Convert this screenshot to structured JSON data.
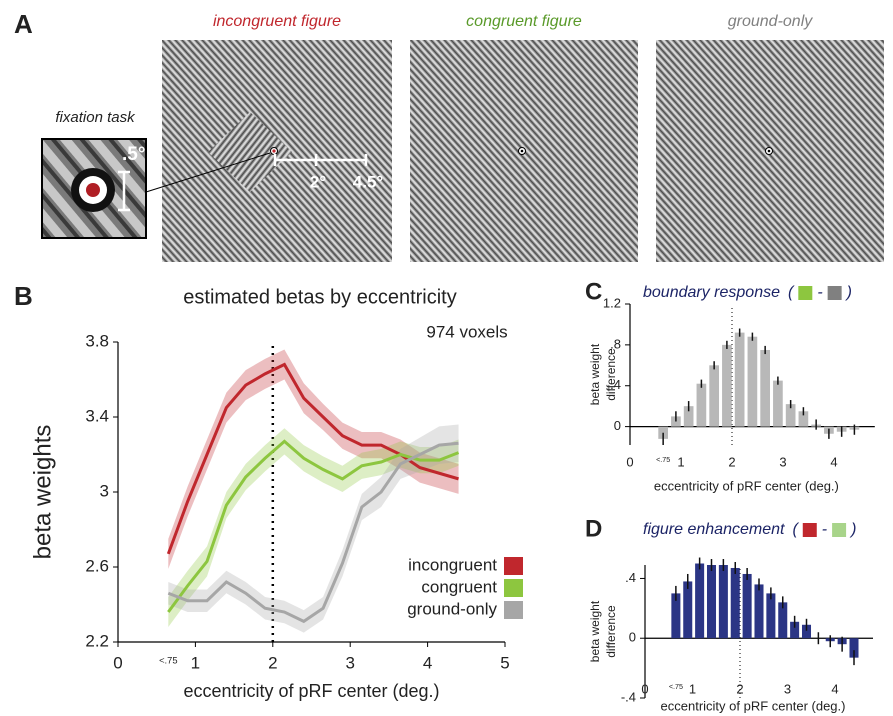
{
  "panel_a": {
    "label": "A",
    "inset_title": "fixation task",
    "inset_scale": ".5°",
    "scale_labels": [
      "2°",
      "4.5°"
    ],
    "images": [
      {
        "title": "incongruent figure",
        "color": "#c0272d"
      },
      {
        "title": "congruent figure",
        "color": "#5a9a2a"
      },
      {
        "title": "ground-only",
        "color": "#808080"
      }
    ]
  },
  "chart_data": [
    {
      "type": "line",
      "label": "B",
      "title": "estimated betas by eccentricity",
      "annotation": "974 voxels",
      "xlabel": "eccentricity of pRF center (deg.)",
      "ylabel": "beta weights",
      "x": [
        0.65,
        0.9,
        1.15,
        1.4,
        1.65,
        1.9,
        2.15,
        2.4,
        2.65,
        2.9,
        3.15,
        3.4,
        3.65,
        3.9,
        4.15,
        4.4
      ],
      "series": [
        {
          "name": "incongruent",
          "color": "#c0272d",
          "values": [
            2.67,
            2.95,
            3.2,
            3.45,
            3.57,
            3.63,
            3.68,
            3.5,
            3.4,
            3.3,
            3.25,
            3.25,
            3.2,
            3.13,
            3.1,
            3.07
          ],
          "errors": [
            0.08,
            0.08,
            0.08,
            0.08,
            0.08,
            0.08,
            0.08,
            0.08,
            0.07,
            0.07,
            0.07,
            0.07,
            0.08,
            0.08,
            0.08,
            0.08
          ]
        },
        {
          "name": "congruent",
          "color": "#8dc63f",
          "values": [
            2.36,
            2.5,
            2.63,
            2.93,
            3.08,
            3.18,
            3.27,
            3.18,
            3.12,
            3.07,
            3.14,
            3.16,
            3.2,
            3.17,
            3.17,
            3.21
          ],
          "errors": [
            0.08,
            0.08,
            0.08,
            0.07,
            0.07,
            0.07,
            0.07,
            0.07,
            0.07,
            0.07,
            0.07,
            0.07,
            0.07,
            0.07,
            0.07,
            0.07
          ]
        },
        {
          "name": "ground-only",
          "color": "#a6a6a6",
          "values": [
            2.46,
            2.42,
            2.42,
            2.52,
            2.46,
            2.38,
            2.36,
            2.31,
            2.38,
            2.62,
            2.92,
            3.0,
            3.15,
            3.2,
            3.25,
            3.26
          ],
          "errors": [
            0.06,
            0.06,
            0.06,
            0.06,
            0.06,
            0.06,
            0.06,
            0.06,
            0.06,
            0.07,
            0.07,
            0.08,
            0.08,
            0.09,
            0.1,
            0.1
          ]
        }
      ],
      "xlim": [
        0,
        5
      ],
      "ylim": [
        2.2,
        3.8
      ],
      "xticks": [
        0,
        {
          "value": 0.65,
          "label": "<.75"
        },
        1,
        2,
        3,
        4,
        5
      ],
      "yticks": [
        2.2,
        2.6,
        3,
        3.4,
        3.8
      ],
      "reference_x": 2,
      "legend": "lower right"
    },
    {
      "type": "bar",
      "label": "C",
      "title": "boundary response",
      "formula": {
        "open": "(",
        "operator": "-",
        "close": ")",
        "colors": [
          "#8dc63f",
          "#808080"
        ]
      },
      "xlabel": "eccentricity of pRF center (deg.)",
      "ylabel": [
        "beta weight",
        "difference"
      ],
      "color": "#b8b8b8",
      "x": [
        0.65,
        0.9,
        1.15,
        1.4,
        1.65,
        1.9,
        2.15,
        2.4,
        2.65,
        2.9,
        3.15,
        3.4,
        3.65,
        3.9,
        4.15,
        4.4
      ],
      "values": [
        -0.12,
        0.1,
        0.2,
        0.42,
        0.6,
        0.8,
        0.92,
        0.88,
        0.75,
        0.45,
        0.22,
        0.15,
        0.02,
        -0.07,
        -0.05,
        -0.03
      ],
      "errors": [
        0.06,
        0.05,
        0.05,
        0.04,
        0.04,
        0.04,
        0.04,
        0.04,
        0.04,
        0.04,
        0.04,
        0.04,
        0.05,
        0.05,
        0.05,
        0.05
      ],
      "xlim": [
        0,
        4.8
      ],
      "ylim": [
        -0.18,
        1.2
      ],
      "xticks": [
        0,
        {
          "value": 0.65,
          "label": "<.75"
        },
        1,
        2,
        3,
        4
      ],
      "yticks": [
        0,
        {
          "value": 0.4,
          "label": ".4"
        },
        {
          "value": 0.8,
          "label": ".8"
        },
        1.2
      ],
      "reference_x": 2
    },
    {
      "type": "bar",
      "label": "D",
      "title": "figure enhancement",
      "formula": {
        "open": "(",
        "operator": "-",
        "close": ")",
        "colors": [
          "#c0272d",
          "#a8d48a"
        ]
      },
      "xlabel": "eccentricity of pRF center (deg.)",
      "ylabel": [
        "beta weight",
        "difference"
      ],
      "color": "#2b3585",
      "x": [
        0.65,
        0.9,
        1.15,
        1.4,
        1.65,
        1.9,
        2.15,
        2.4,
        2.65,
        2.9,
        3.15,
        3.4,
        3.65,
        3.9,
        4.15,
        4.4
      ],
      "values": [
        0.3,
        0.38,
        0.5,
        0.49,
        0.49,
        0.47,
        0.43,
        0.36,
        0.3,
        0.24,
        0.11,
        0.09,
        0.0,
        -0.02,
        -0.04,
        -0.13
      ],
      "errors": [
        0.05,
        0.05,
        0.04,
        0.04,
        0.04,
        0.04,
        0.04,
        0.04,
        0.04,
        0.04,
        0.04,
        0.04,
        0.04,
        0.04,
        0.05,
        0.05
      ],
      "xlim": [
        0,
        4.8
      ],
      "ylim": [
        -0.4,
        0.49
      ],
      "xticks": [
        0,
        {
          "value": 0.65,
          "label": "<.75"
        },
        1,
        2,
        3,
        4
      ],
      "yticks": [
        {
          "value": -0.4,
          "label": "-.4"
        },
        0,
        {
          "value": 0.4,
          "label": ".4"
        }
      ],
      "reference_x": 2
    }
  ]
}
